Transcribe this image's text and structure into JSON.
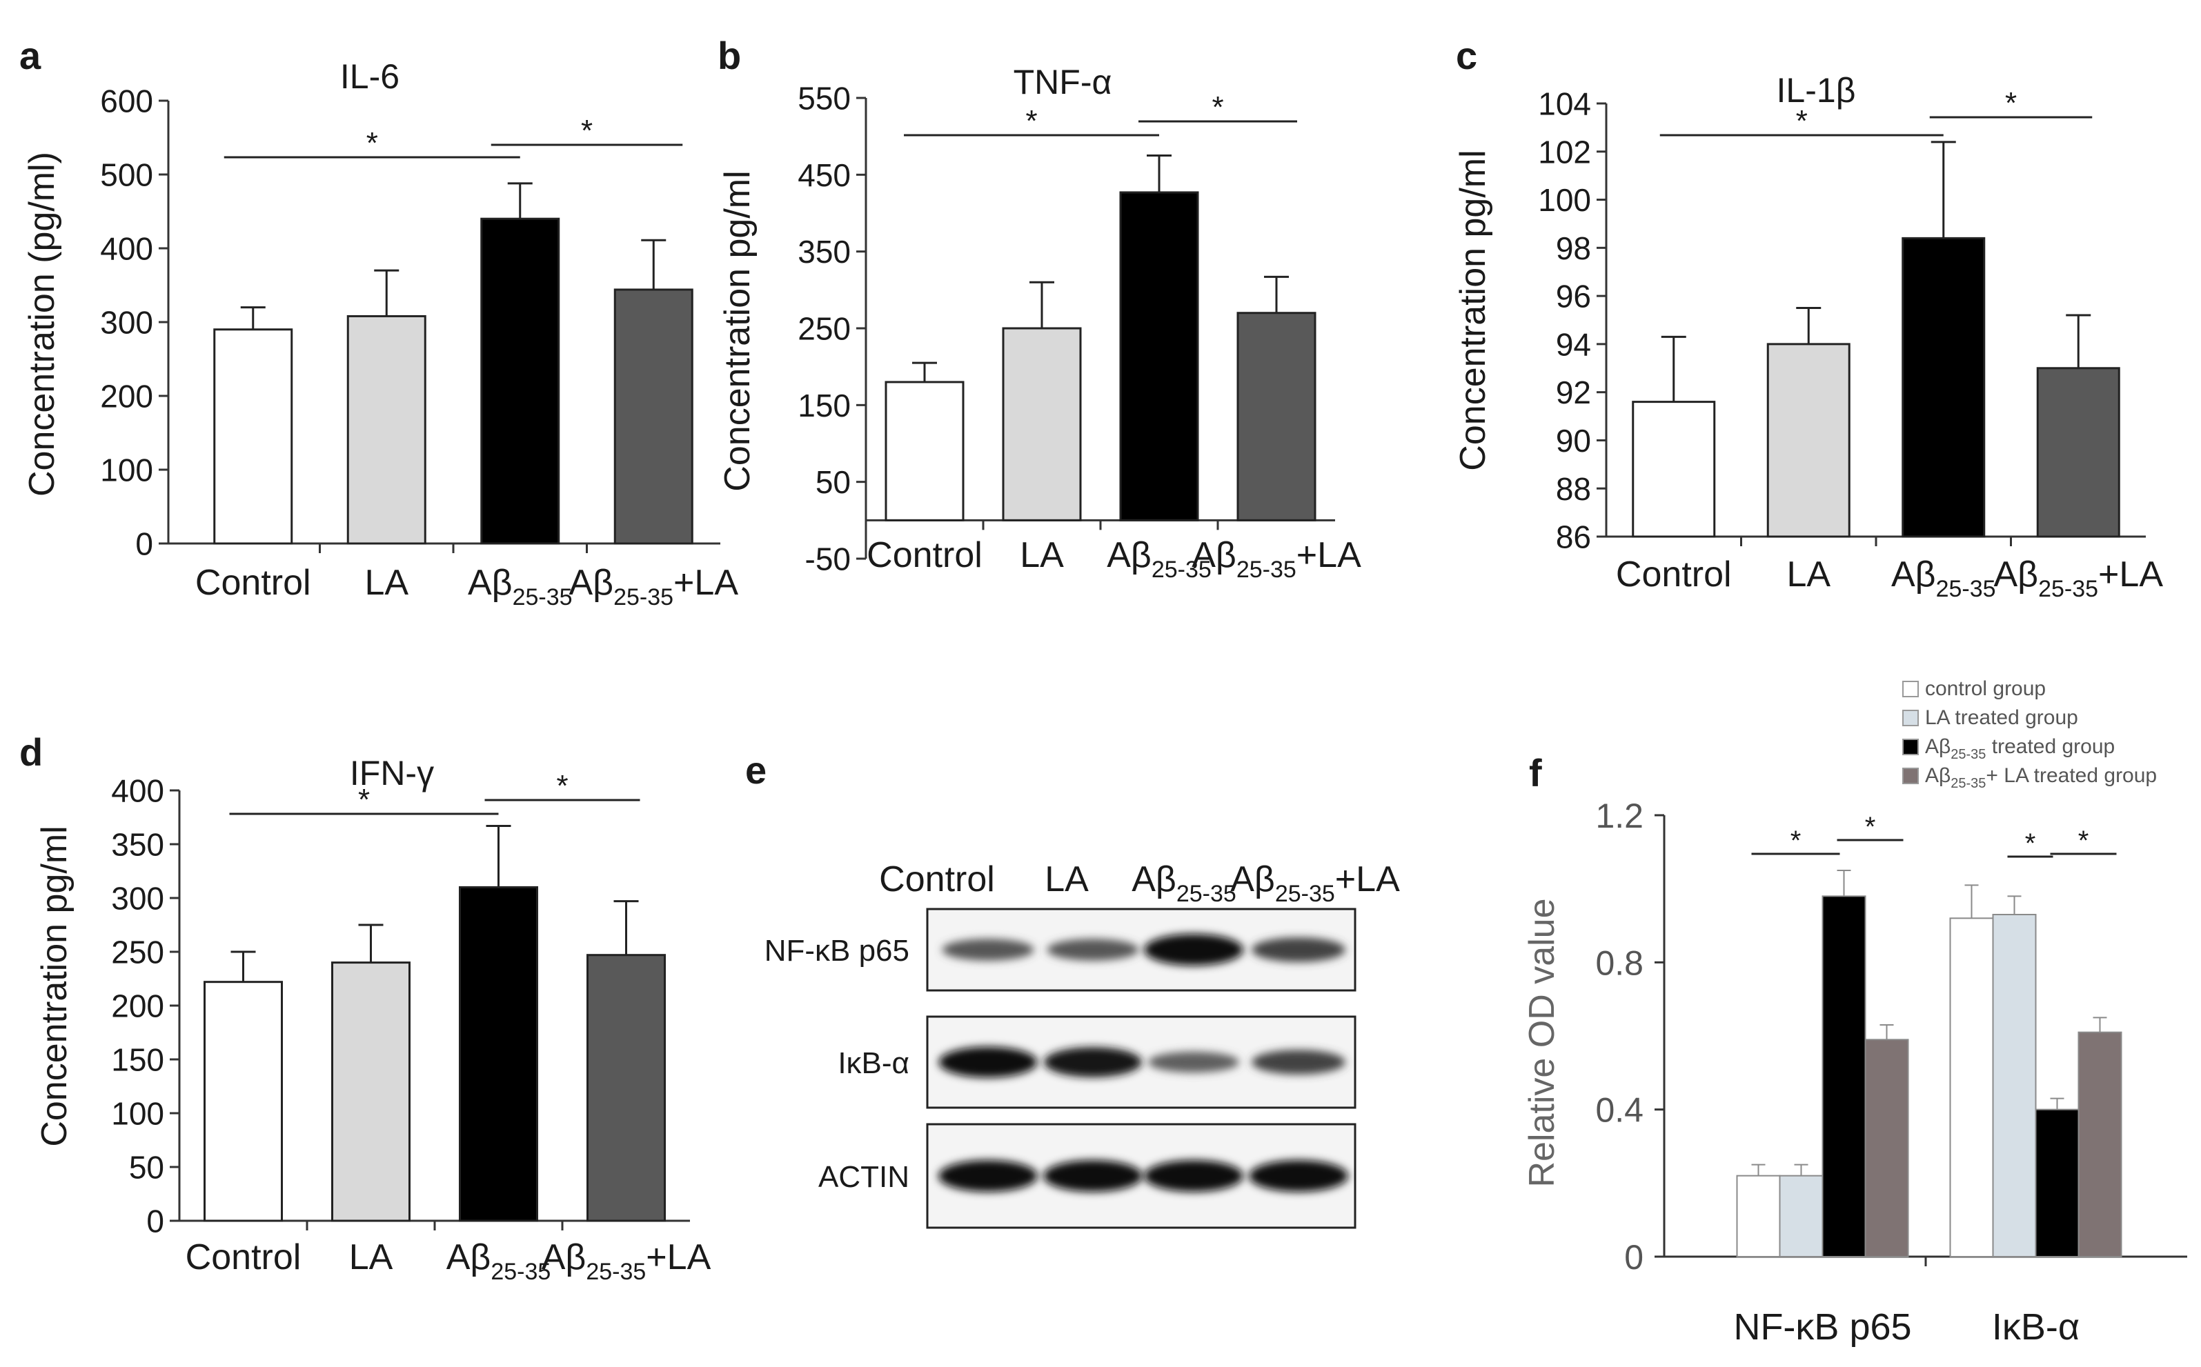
{
  "chart_data": [
    {
      "panel_letter": "a",
      "type": "bar",
      "title": "IL-6",
      "ylabel": "Concentration (pg/ml)",
      "ylim": [
        0,
        600
      ],
      "yticks": [
        "0",
        "100",
        "200",
        "300",
        "400",
        "500",
        "600"
      ],
      "categories": [
        {
          "main": "Control",
          "sub": "",
          "suffix": ""
        },
        {
          "main": "LA",
          "sub": "",
          "suffix": ""
        },
        {
          "main": "Aβ",
          "sub": "25-35",
          "suffix": ""
        },
        {
          "main": "Aβ",
          "sub": "25-35",
          "suffix": "+LA"
        }
      ],
      "values": [
        290,
        308,
        440,
        344
      ],
      "errors": [
        30,
        62,
        48,
        67
      ],
      "colors": [
        "#ffffff",
        "#d9d9d9",
        "#000000",
        "#595959"
      ],
      "sig_brackets": [
        {
          "from": 0,
          "to": 2,
          "label": "*"
        },
        {
          "from": 2,
          "to": 3,
          "label": "*"
        }
      ]
    },
    {
      "panel_letter": "b",
      "type": "bar",
      "title": "TNF-α",
      "ylabel": "Concentration pg/ml",
      "ylim": [
        -50,
        550
      ],
      "yticks": [
        "-50",
        "50",
        "150",
        "250",
        "350",
        "450",
        "550"
      ],
      "categories": [
        {
          "main": "Control",
          "sub": "",
          "suffix": ""
        },
        {
          "main": "LA",
          "sub": "",
          "suffix": ""
        },
        {
          "main": "Aβ",
          "sub": "25-35",
          "suffix": ""
        },
        {
          "main": "Aβ",
          "sub": "25-35",
          "suffix": "+LA"
        }
      ],
      "values": [
        180,
        250,
        427,
        270
      ],
      "errors": [
        25,
        60,
        48,
        47
      ],
      "colors": [
        "#ffffff",
        "#d9d9d9",
        "#000000",
        "#595959"
      ],
      "sig_brackets": [
        {
          "from": 0,
          "to": 2,
          "label": "*"
        },
        {
          "from": 2,
          "to": 3,
          "label": "*"
        }
      ]
    },
    {
      "panel_letter": "c",
      "type": "bar",
      "title": "IL-1β",
      "ylabel": "Concentration pg/ml",
      "ylim": [
        86,
        104
      ],
      "yticks": [
        "86",
        "88",
        "90",
        "92",
        "94",
        "96",
        "98",
        "100",
        "102",
        "104"
      ],
      "categories": [
        {
          "main": "Control",
          "sub": "",
          "suffix": ""
        },
        {
          "main": "LA",
          "sub": "",
          "suffix": ""
        },
        {
          "main": "Aβ",
          "sub": "25-35",
          "suffix": ""
        },
        {
          "main": "Aβ",
          "sub": "25-35",
          "suffix": "+LA"
        }
      ],
      "values": [
        91.6,
        94.0,
        98.4,
        93.0
      ],
      "errors": [
        2.7,
        1.5,
        4.0,
        2.2
      ],
      "colors": [
        "#ffffff",
        "#d9d9d9",
        "#000000",
        "#595959"
      ],
      "sig_brackets": [
        {
          "from": 0,
          "to": 2,
          "label": "*"
        },
        {
          "from": 2,
          "to": 3,
          "label": "*"
        }
      ]
    },
    {
      "panel_letter": "d",
      "type": "bar",
      "title": "IFN-γ",
      "ylabel": "Concentration pg/ml",
      "ylim": [
        0,
        400
      ],
      "yticks": [
        "0",
        "50",
        "100",
        "150",
        "200",
        "250",
        "300",
        "350",
        "400"
      ],
      "categories": [
        {
          "main": "Control",
          "sub": "",
          "suffix": ""
        },
        {
          "main": "LA",
          "sub": "",
          "suffix": ""
        },
        {
          "main": "Aβ",
          "sub": "25-35",
          "suffix": ""
        },
        {
          "main": "Aβ",
          "sub": "25-35",
          "suffix": "+LA"
        }
      ],
      "values": [
        222,
        240,
        310,
        247
      ],
      "errors": [
        28,
        35,
        57,
        50
      ],
      "colors": [
        "#ffffff",
        "#d9d9d9",
        "#000000",
        "#595959"
      ],
      "sig_brackets": [
        {
          "from": 0,
          "to": 2,
          "label": "*"
        },
        {
          "from": 2,
          "to": 3,
          "label": "*"
        }
      ]
    },
    {
      "panel_letter": "f",
      "type": "bar",
      "title": "",
      "ylabel": "Relative OD value",
      "ylim": [
        0,
        1.2
      ],
      "yticks": [
        "0",
        "0.4",
        "0.8",
        "1.2"
      ],
      "categories": [
        "NF-κB p65",
        "IκB-α"
      ],
      "series": [
        {
          "name": "control group",
          "values": [
            0.22,
            0.92
          ],
          "errors": [
            0.03,
            0.09
          ],
          "color": "#ffffff"
        },
        {
          "name": "LA treated group",
          "values": [
            0.22,
            0.93
          ],
          "errors": [
            0.03,
            0.05
          ],
          "color": "#d6dfe6"
        },
        {
          "name": "Aβ25-35 treated group",
          "values": [
            0.98,
            0.4
          ],
          "errors": [
            0.07,
            0.03
          ],
          "color": "#000000"
        },
        {
          "name": "Aβ25-35+LA treated group",
          "values": [
            0.59,
            0.61
          ],
          "errors": [
            0.04,
            0.04
          ],
          "color": "#7f7373"
        }
      ],
      "legend_items": [
        {
          "pre": "",
          "sub": "",
          "post": "control group"
        },
        {
          "pre": "",
          "sub": "",
          "post": "LA treated group"
        },
        {
          "pre": "Aβ",
          "sub": "25-35",
          "post": " treated group"
        },
        {
          "pre": "Aβ",
          "sub": "25-35",
          "post": "+ LA treated group"
        }
      ],
      "legend_position": "top-right",
      "sig_brackets": [
        {
          "category": 0,
          "from": 0,
          "to": 2,
          "label": "*"
        },
        {
          "category": 0,
          "from": 2,
          "to": 3,
          "label": "*"
        },
        {
          "category": 1,
          "from": 1,
          "to": 2,
          "label": "*"
        },
        {
          "category": 1,
          "from": 2,
          "to": 3,
          "label": "*"
        }
      ]
    }
  ],
  "blot": {
    "panel_letter": "e",
    "lanes": [
      {
        "main": "Control",
        "sub": "",
        "suffix": ""
      },
      {
        "main": "LA",
        "sub": "",
        "suffix": ""
      },
      {
        "main": "Aβ",
        "sub": "25-35",
        "suffix": ""
      },
      {
        "main": "Aβ",
        "sub": "25-35",
        "suffix": "+LA"
      }
    ],
    "rows": [
      {
        "label": "NF-κB p65",
        "intensity": [
          0.45,
          0.45,
          1.0,
          0.6
        ]
      },
      {
        "label": "IκB-α",
        "intensity": [
          0.95,
          0.9,
          0.4,
          0.6
        ]
      },
      {
        "label": "ACTIN",
        "intensity": [
          1.0,
          1.0,
          1.0,
          1.0
        ]
      }
    ]
  }
}
